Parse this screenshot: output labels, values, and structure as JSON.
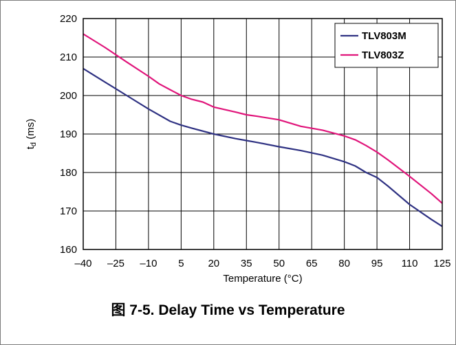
{
  "caption": "图 7-5. Delay Time vs Temperature",
  "chart_data": {
    "type": "line",
    "title": "",
    "xlabel": "Temperature (°C)",
    "ylabel_main": "t",
    "ylabel_sub": "d",
    "ylabel_unit": " (ms)",
    "xlim": [
      -40,
      125
    ],
    "ylim": [
      160,
      220
    ],
    "x_ticks": [
      -40,
      -25,
      -10,
      5,
      20,
      35,
      50,
      65,
      80,
      95,
      110,
      125
    ],
    "x_tick_labels": [
      "–40",
      "–25",
      "–10",
      "5",
      "20",
      "35",
      "50",
      "65",
      "80",
      "95",
      "110",
      "125"
    ],
    "y_ticks": [
      160,
      170,
      180,
      190,
      200,
      210,
      220
    ],
    "y_tick_labels": [
      "160",
      "170",
      "180",
      "190",
      "200",
      "210",
      "220"
    ],
    "grid": true,
    "legend_position": "top-right",
    "series": [
      {
        "name": "TLV803M",
        "color": "#2e3182",
        "x": [
          -40,
          -30,
          -20,
          -10,
          0,
          5,
          10,
          20,
          30,
          35,
          40,
          50,
          60,
          70,
          80,
          85,
          90,
          95,
          100,
          110,
          120,
          125
        ],
        "values": [
          207,
          203.5,
          200,
          196.5,
          193.3,
          192.3,
          191.5,
          190,
          188.8,
          188.3,
          187.8,
          186.7,
          185.7,
          184.5,
          182.8,
          181.7,
          180,
          178.7,
          176.5,
          171.7,
          167.8,
          166
        ]
      },
      {
        "name": "TLV803Z",
        "color": "#e0147a",
        "x": [
          -40,
          -30,
          -20,
          -10,
          -5,
          0,
          5,
          10,
          15,
          20,
          30,
          35,
          40,
          50,
          60,
          70,
          80,
          85,
          90,
          95,
          100,
          110,
          120,
          125
        ],
        "values": [
          216,
          212.5,
          208.7,
          205,
          203,
          201.5,
          200,
          199,
          198.3,
          197,
          195.7,
          195,
          194.6,
          193.7,
          192,
          191,
          189.5,
          188.5,
          187,
          185.3,
          183.3,
          179,
          174.5,
          172
        ]
      }
    ]
  }
}
